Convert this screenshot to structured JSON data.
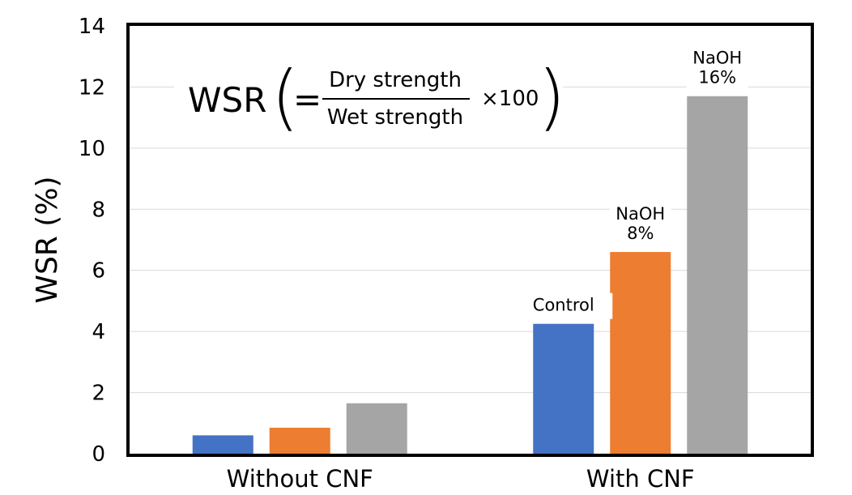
{
  "chart_data": {
    "type": "bar",
    "title": "",
    "xlabel": "",
    "ylabel": "WSR (%)",
    "ylim": [
      0,
      14
    ],
    "yticks": [
      0,
      2,
      4,
      6,
      8,
      10,
      12,
      14
    ],
    "grid": true,
    "categories": [
      "Without CNF",
      "With CNF"
    ],
    "series": [
      {
        "name": "Control",
        "color": "#4472C4",
        "values": [
          0.6,
          4.25
        ]
      },
      {
        "name": "NaOH\n8%",
        "color": "#ED7D31",
        "values": [
          0.85,
          6.6
        ]
      },
      {
        "name": "NaOH\n16%",
        "color": "#A5A5A5",
        "values": [
          1.65,
          11.7
        ]
      }
    ],
    "bar_labels": [
      {
        "category_index": 1,
        "series_index": 0,
        "lines": [
          "Control"
        ]
      },
      {
        "category_index": 1,
        "series_index": 1,
        "lines": [
          "NaOH",
          "8%"
        ]
      },
      {
        "category_index": 1,
        "series_index": 2,
        "lines": [
          "NaOH",
          "16%"
        ]
      }
    ],
    "formula": {
      "lhs": "WSR",
      "equals": "=",
      "numerator": "Dry strength",
      "denominator": "Wet strength",
      "multiplier": "×100",
      "open_paren": "(",
      "close_paren": ")"
    }
  }
}
